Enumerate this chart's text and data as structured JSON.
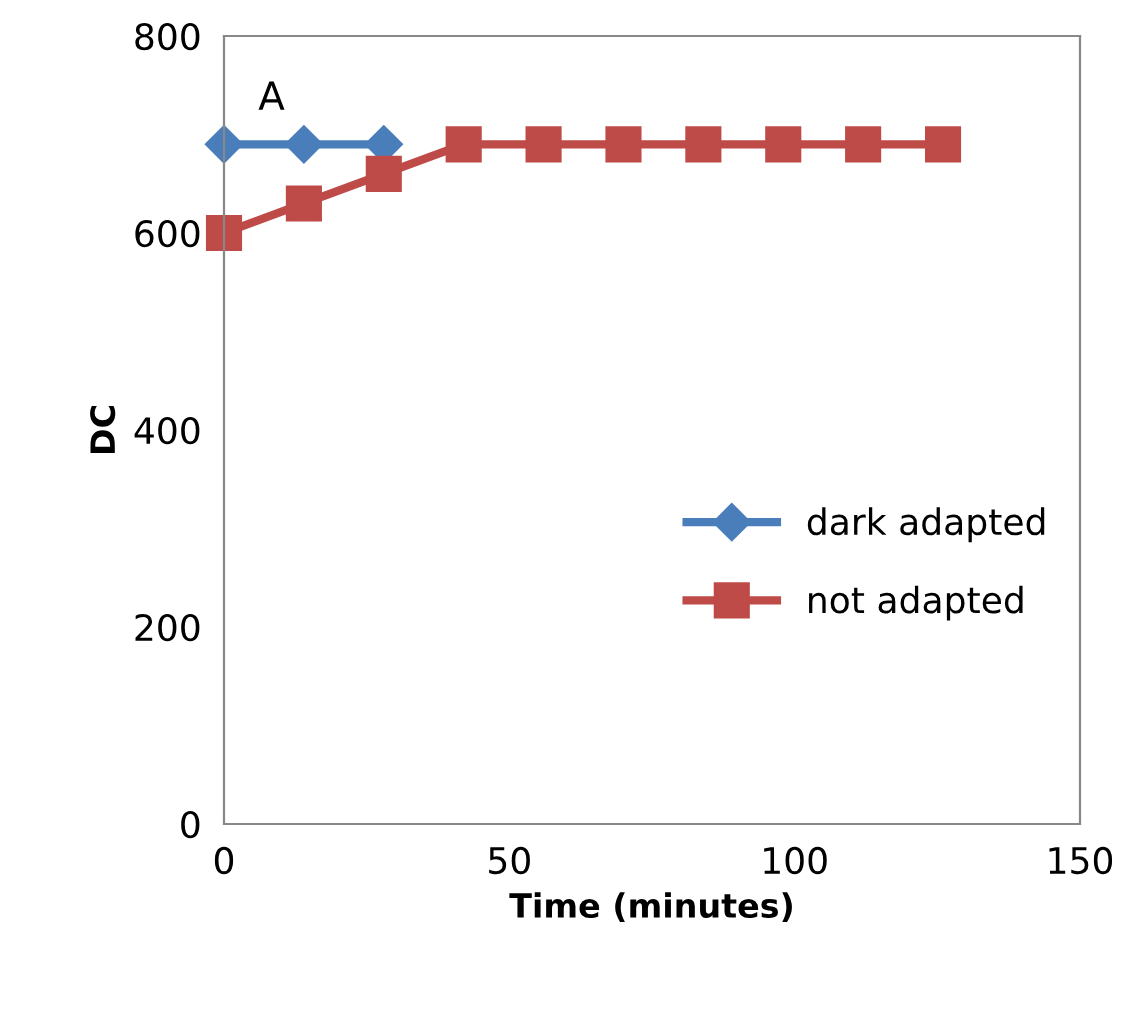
{
  "chart_data": {
    "type": "line",
    "xlabel": "Time (minutes)",
    "ylabel": "DC",
    "x": [
      0,
      14,
      28,
      42,
      56,
      70,
      84,
      98,
      112,
      126
    ],
    "series": [
      {
        "name": "dark adapted",
        "color": "#4a7ebb",
        "marker": "diamond",
        "values": [
          690,
          690,
          690,
          null,
          null,
          null,
          null,
          null,
          null,
          null
        ]
      },
      {
        "name": "not adapted",
        "color": "#be4b48",
        "marker": "square",
        "values": [
          600,
          630,
          660,
          690,
          690,
          690,
          690,
          690,
          690,
          690
        ]
      }
    ],
    "xlim": [
      0,
      150
    ],
    "xticks": [
      0,
      50,
      100,
      150
    ],
    "ylim": [
      0,
      800
    ],
    "yticks": [
      0,
      200,
      400,
      600,
      800
    ],
    "grid": false,
    "legend": "right",
    "annotations": [
      "A"
    ]
  }
}
